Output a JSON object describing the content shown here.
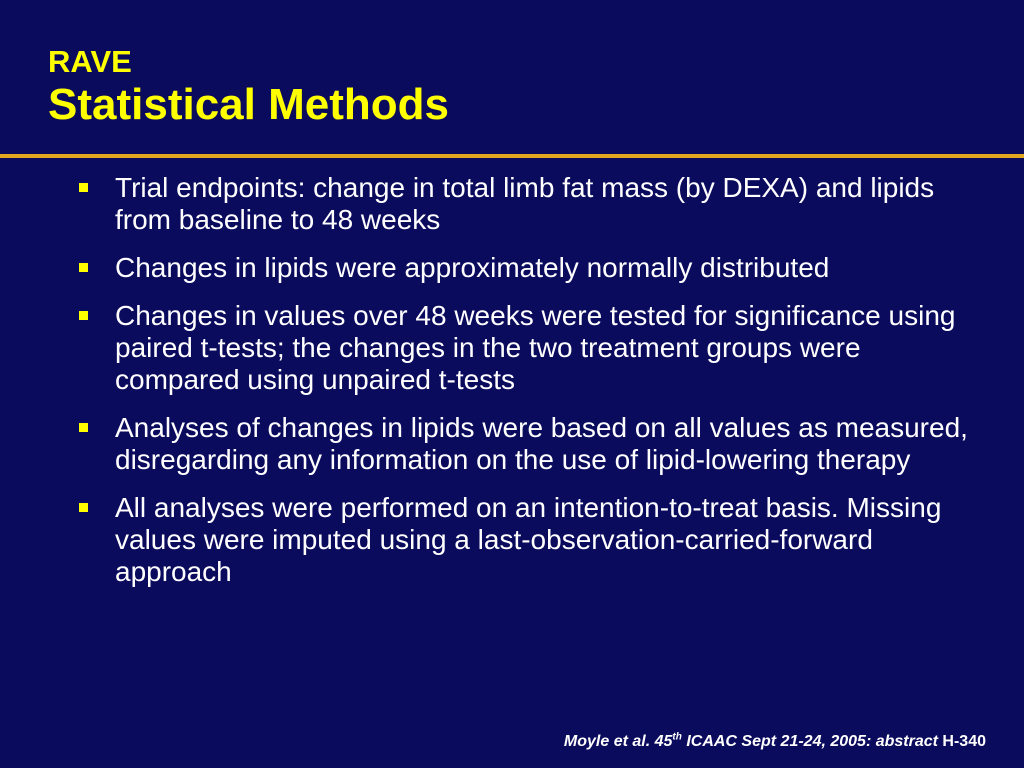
{
  "slide": {
    "title_line1": "RAVE",
    "title_line2": "Statistical Methods",
    "bullets": [
      "Trial endpoints: change in total limb fat mass (by DEXA) and lipids from baseline to 48 weeks",
      "Changes in lipids were approximately normally distributed",
      "Changes in values over 48 weeks were tested for significance using paired t-tests; the changes in the two treatment groups were compared using unpaired t-tests",
      "Analyses of changes in lipids were based on all values as measured, disregarding any information on the use of lipid-lowering therapy",
      "All analyses were performed on an intention-to-treat basis.  Missing values were imputed using a last-observation-carried-forward approach"
    ],
    "citation": {
      "authors": "Moyle et al. 45",
      "sup": "th",
      "conference": " ICAAC Sept 21-24, 2005: abstract ",
      "abstract_id": "H-340"
    }
  },
  "colors": {
    "background": "#0b0b5e",
    "title": "#ffff00",
    "divider": "#e3a81e",
    "bullet_marker": "#ffff00",
    "text": "#ffffff"
  }
}
